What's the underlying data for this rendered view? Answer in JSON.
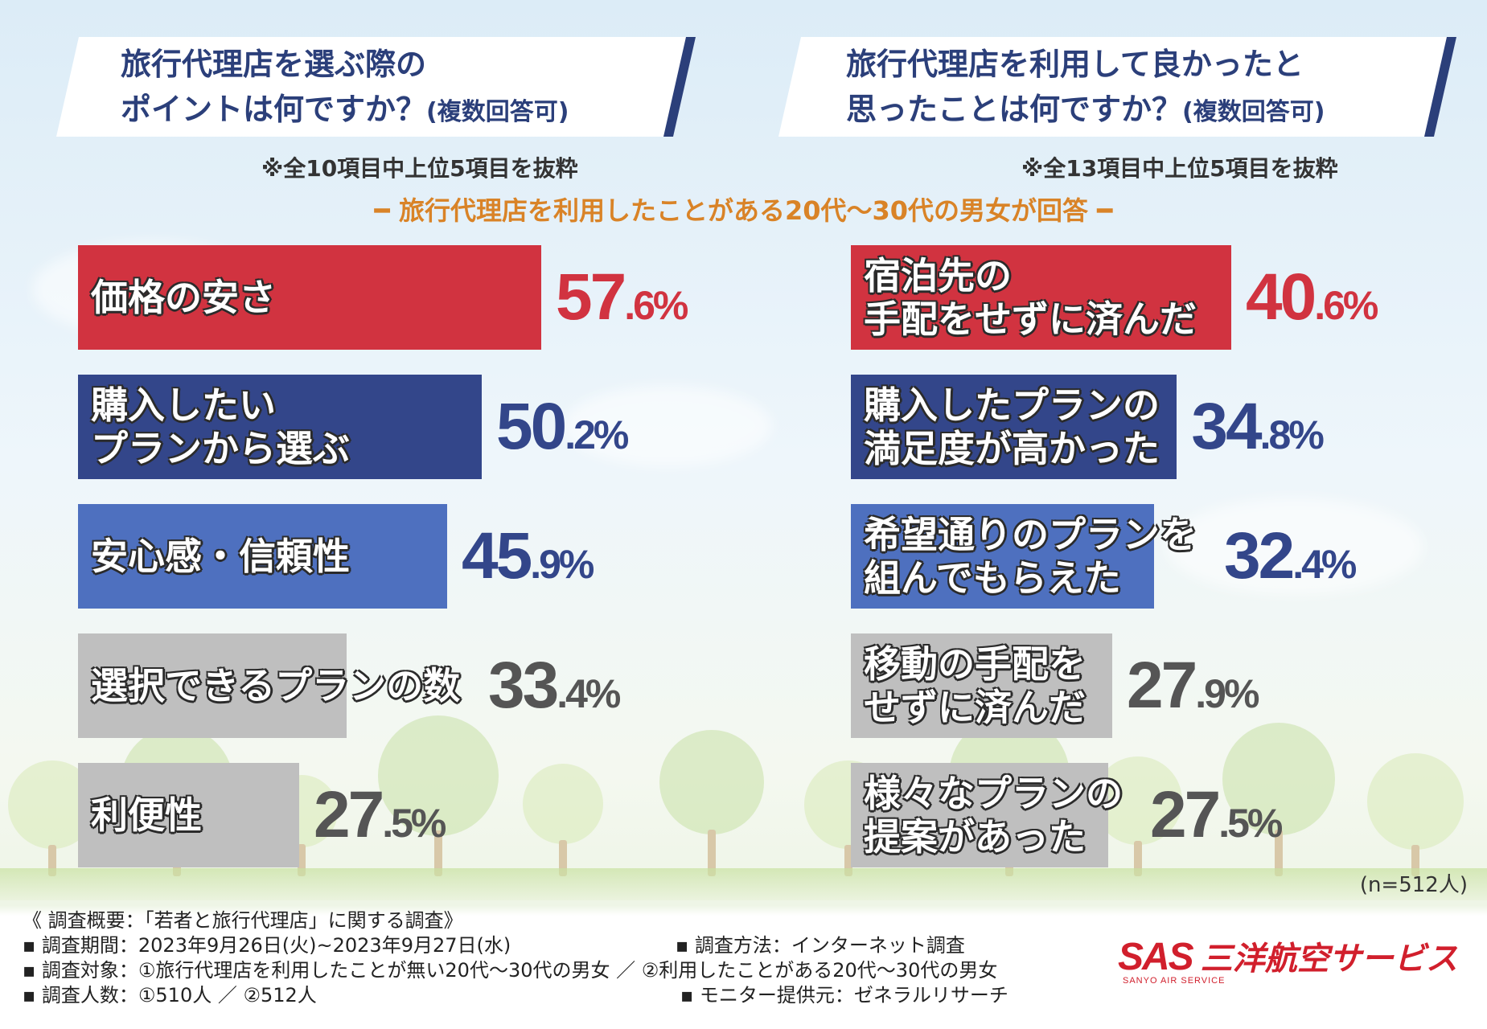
{
  "left_question": {
    "line1": "旅行代理店を選ぶ際の",
    "line2": "ポイントは何ですか？",
    "suffix": "(複数回答可)",
    "note": "※全10項目中上位5項目を抜粋"
  },
  "right_question": {
    "line1": "旅行代理店を利用して良かったと",
    "line2": "思ったことは何ですか？",
    "suffix": "(複数回答可)",
    "note": "※全13項目中上位5項目を抜粋"
  },
  "subtitle": "━ 旅行代理店を利用したことがある20代〜30代の男女が回答 ━",
  "chart_data": [
    {
      "type": "bar",
      "orientation": "horizontal",
      "categories": [
        "価格の安さ",
        "購入したいプランから選ぶ",
        "安心感・信頼性",
        "選択できるプランの数",
        "利便性"
      ],
      "values": [
        57.6,
        50.2,
        45.9,
        33.4,
        27.5
      ],
      "unit": "%",
      "colors": [
        "#d13340",
        "#33468a",
        "#4e70bf",
        "#bfbfbf",
        "#bfbfbf"
      ],
      "labels": [
        {
          "lines": [
            "価格の安さ"
          ],
          "int": "57",
          "dec": ".6%"
        },
        {
          "lines": [
            "購入したい",
            "プランから選ぶ"
          ],
          "int": "50",
          "dec": ".2%"
        },
        {
          "lines": [
            "安心感・信頼性"
          ],
          "int": "45",
          "dec": ".9%"
        },
        {
          "lines": [
            "選択できるプランの数"
          ],
          "int": "33",
          "dec": ".4%"
        },
        {
          "lines": [
            "利便性"
          ],
          "int": "27",
          "dec": ".5%"
        }
      ]
    },
    {
      "type": "bar",
      "orientation": "horizontal",
      "categories": [
        "宿泊先の手配をせずに済んだ",
        "購入したプランの満足度が高かった",
        "希望通りのプランを組んでもらえた",
        "移動の手配をせずに済んだ",
        "様々なプランの提案があった"
      ],
      "values": [
        40.6,
        34.8,
        32.4,
        27.9,
        27.5
      ],
      "unit": "%",
      "colors": [
        "#d13340",
        "#33468a",
        "#4e70bf",
        "#bfbfbf",
        "#bfbfbf"
      ],
      "labels": [
        {
          "lines": [
            "宿泊先の",
            "手配をせずに済んだ"
          ],
          "int": "40",
          "dec": ".6%"
        },
        {
          "lines": [
            "購入したプランの",
            "満足度が高かった"
          ],
          "int": "34",
          "dec": ".8%"
        },
        {
          "lines": [
            "希望通りのプランを",
            "組んでもらえた"
          ],
          "int": "32",
          "dec": ".4%"
        },
        {
          "lines": [
            "移動の手配を",
            "せずに済んだ"
          ],
          "int": "27",
          "dec": ".9%"
        },
        {
          "lines": [
            "様々なプランの",
            "提案があった"
          ],
          "int": "27",
          "dec": ".5%"
        }
      ]
    }
  ],
  "sample_note": "(n=512人)",
  "footer": {
    "summary": "《 調査概要：「若者と旅行代理店」に関する調査》",
    "period": "▪ 調査期間：2023年9月26日(火)~2023年9月27日(水)",
    "target": "▪ 調査対象：①旅行代理店を利用したことが無い20代〜30代の男女 ／ ②利用したことがある20代〜30代の男女",
    "count": "▪ 調査人数：①510人 ／ ②512人",
    "method": "▪ 調査方法：インターネット調査",
    "provider": "▪ モニター提供元：ゼネラルリサーチ"
  },
  "logo": {
    "mark": "SAS",
    "name": "三洋航空サービス",
    "en": "SANYO AIR SERVICE"
  }
}
